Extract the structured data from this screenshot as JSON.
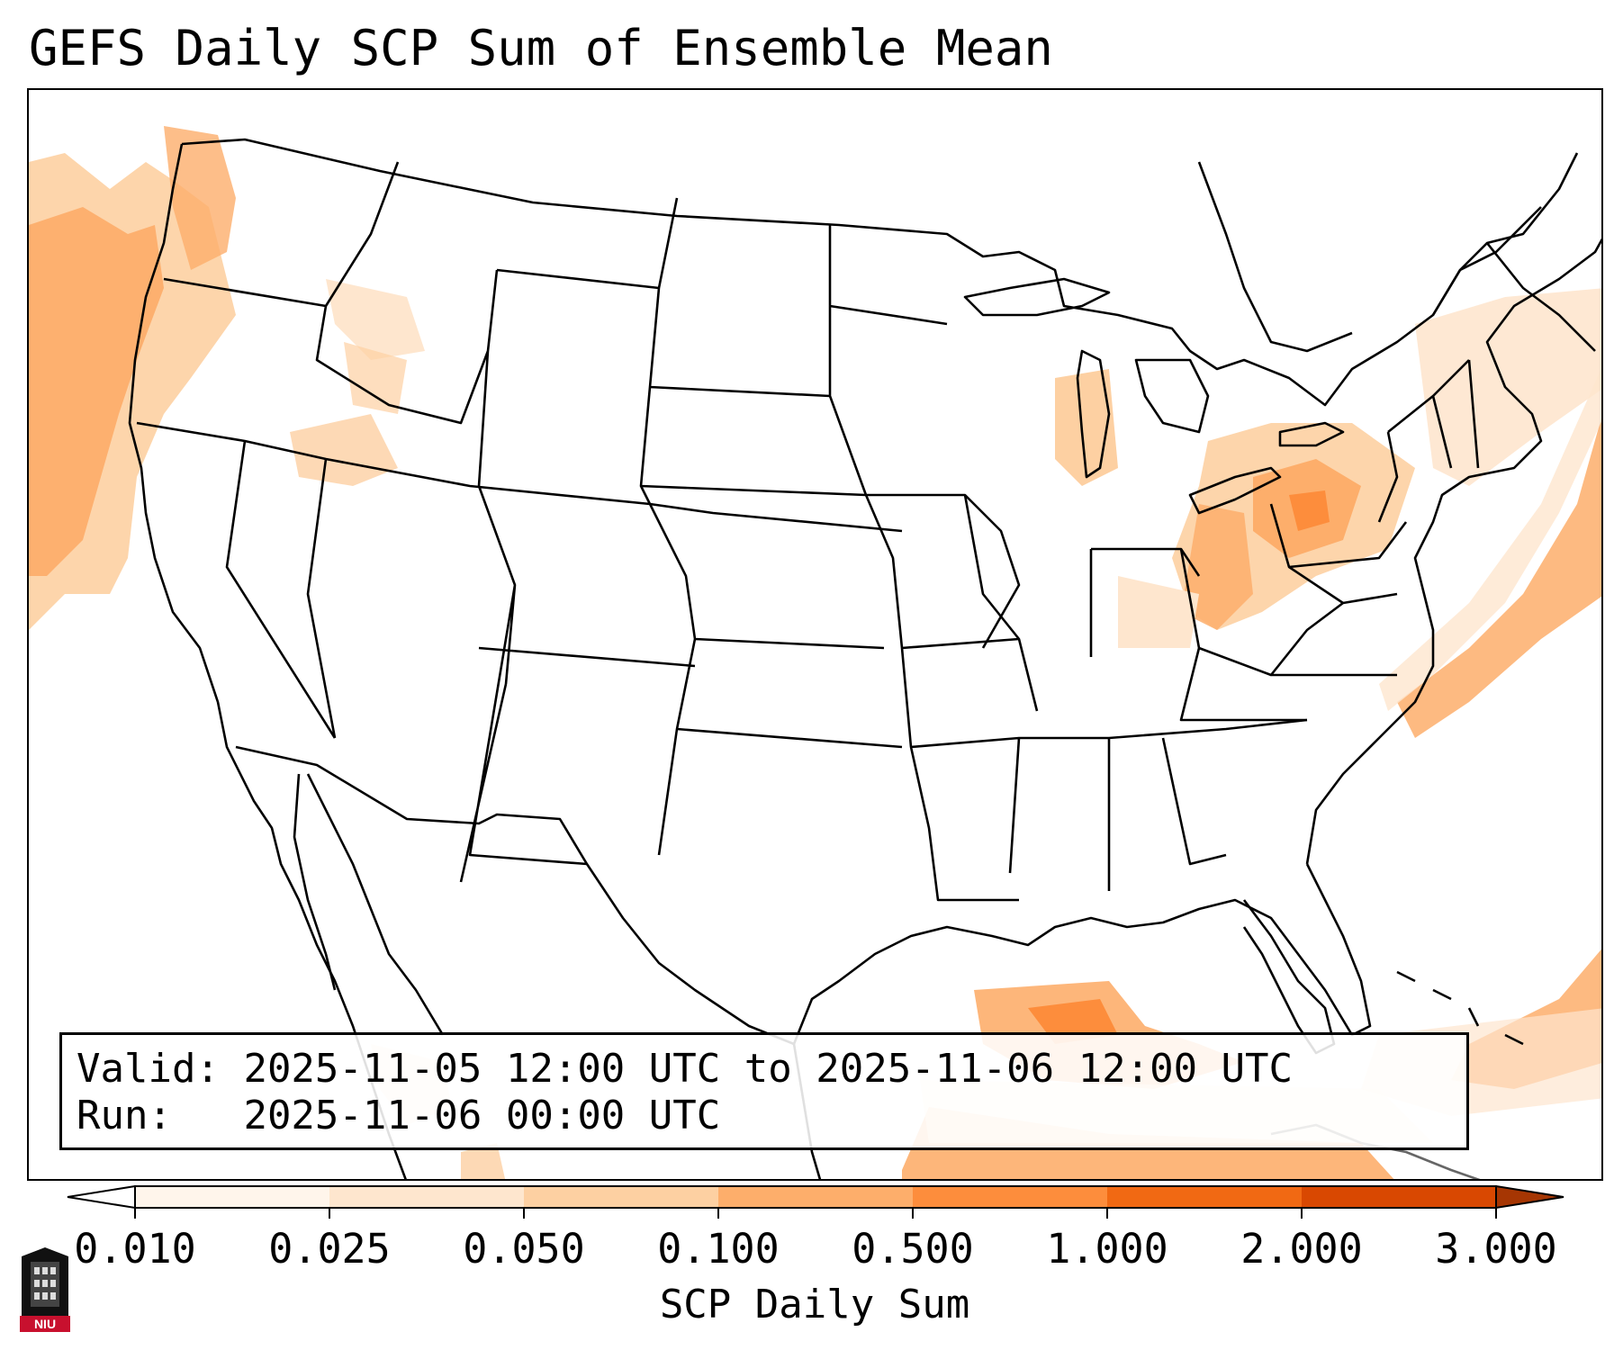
{
  "title": "GEFS Daily SCP Sum of Ensemble Mean",
  "info": {
    "valid_label": "Valid:",
    "valid_value": "2025-11-05 12:00 UTC to 2025-11-06 12:00 UTC",
    "run_label": "Run:",
    "run_value": "2025-11-06 00:00 UTC"
  },
  "colorbar": {
    "label": "SCP Daily Sum",
    "ticks": [
      "0.010",
      "0.025",
      "0.050",
      "0.100",
      "0.500",
      "1.000",
      "2.000",
      "3.000"
    ],
    "colors": [
      "#fff5eb",
      "#fee6ce",
      "#fdd0a2",
      "#fdae6b",
      "#fd8d3c",
      "#f16913",
      "#d94801",
      "#a63603"
    ],
    "extend": "both"
  },
  "map": {
    "projection": "Lambert Conformal (CONUS)",
    "shading_color_scale": "Oranges",
    "notable_regions": [
      {
        "name": "Pacific coast (WA/OR/N-CA)",
        "level": 0.1
      },
      {
        "name": "Pennsylvania / Ohio",
        "level": 0.5
      },
      {
        "name": "Gulf of Mexico south",
        "level": 0.5
      },
      {
        "name": "Atlantic offshore",
        "level": 0.1
      }
    ]
  },
  "logo": {
    "text": "NIU"
  }
}
